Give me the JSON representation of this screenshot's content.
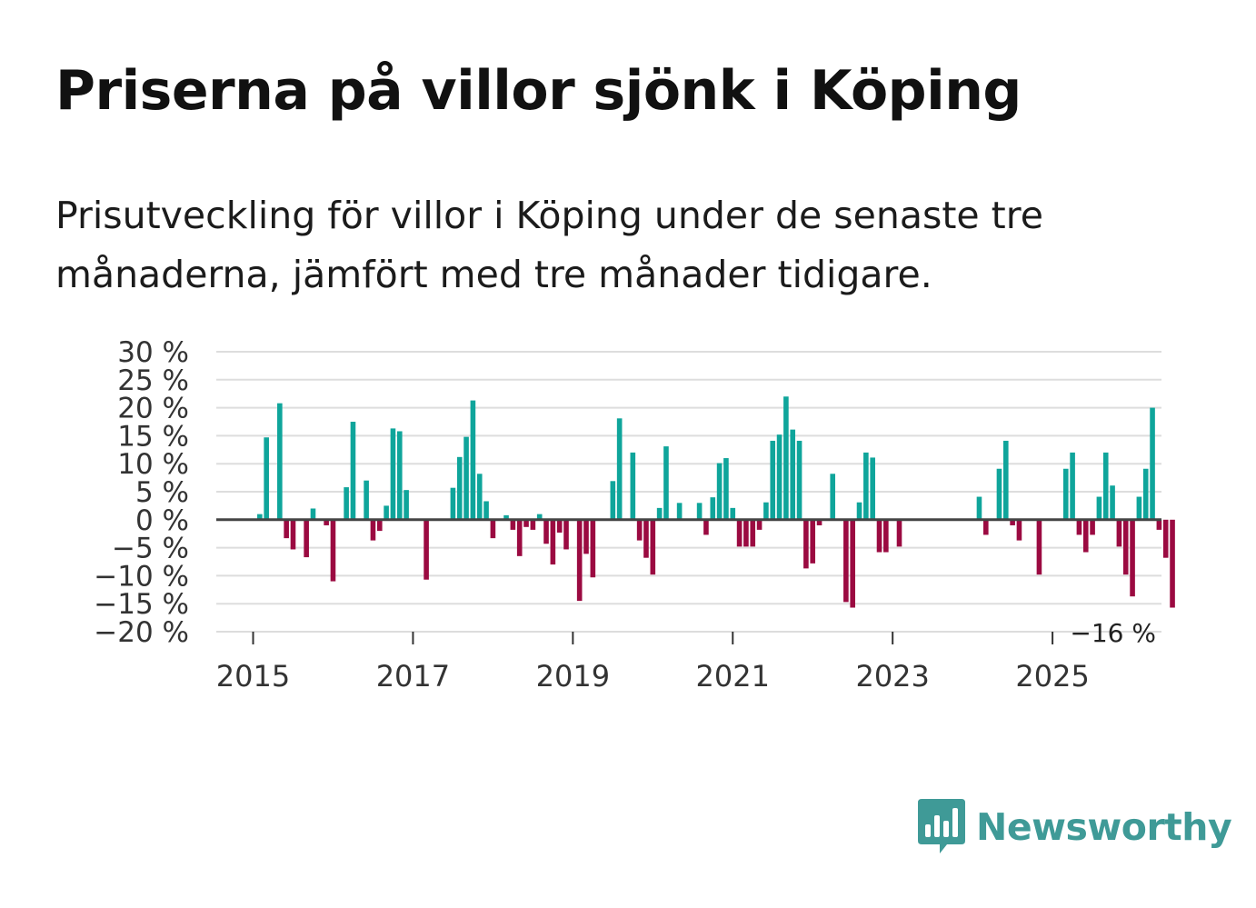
{
  "title": "Priserna på villor sjönk i Köping",
  "subtitle": "Prisutveckling för villor i Köping under de senaste tre månaderna, jämfört med tre månader tidigare.",
  "brand": {
    "name": "Newsworthy",
    "logo_icon": "bar-chart-speech-bubble-icon",
    "color": "#3f9a97"
  },
  "colors": {
    "positive": "#0fa59b",
    "negative": "#9b0a41",
    "gridline": "#dddddd",
    "zeroline": "#444444"
  },
  "chart_data": {
    "type": "bar",
    "title": "Priserna på villor sjönk i Köping",
    "xlabel": "",
    "ylabel": "",
    "ylim": [
      -20,
      30
    ],
    "yticks": [
      30,
      25,
      20,
      15,
      10,
      5,
      0,
      -5,
      -10,
      -15,
      -20
    ],
    "ytick_labels": [
      "30 %",
      "25 %",
      "20 %",
      "15 %",
      "10 %",
      "5 %",
      "0 %",
      "−5 %",
      "−10 %",
      "−15 %",
      "−20 %"
    ],
    "xtick_labels": [
      "2015",
      "2017",
      "2019",
      "2021",
      "2023",
      "2025"
    ],
    "xtick_years": [
      2015,
      2017,
      2019,
      2021,
      2023,
      2025
    ],
    "grid": true,
    "start": "2015-01",
    "end_label": "−16 %",
    "values": [
      null,
      1,
      14.7,
      null,
      20.8,
      -3.3,
      -5.3,
      null,
      -6.7,
      2,
      null,
      -1,
      -11,
      null,
      5.8,
      17.5,
      null,
      7,
      -3.7,
      -2,
      2.5,
      16.3,
      15.8,
      5.3,
      null,
      null,
      -10.7,
      null,
      null,
      null,
      5.7,
      11.2,
      14.8,
      21.3,
      8.2,
      3.3,
      -3.3,
      null,
      0.8,
      -1.8,
      -6.5,
      -1.3,
      -1.8,
      1,
      -4.3,
      -8,
      -2.3,
      -5.3,
      null,
      -14.5,
      -6.1,
      -10.3,
      null,
      null,
      6.9,
      18.1,
      null,
      12,
      -3.7,
      -6.8,
      -9.8,
      2.1,
      13.1,
      null,
      3,
      null,
      null,
      3,
      -2.7,
      4,
      10.1,
      11,
      2.1,
      -4.8,
      -4.8,
      -4.8,
      -1.8,
      3.1,
      14.1,
      15.2,
      22,
      16.1,
      14.1,
      -8.7,
      -7.8,
      -1,
      null,
      8.2,
      null,
      -14.7,
      -15.7,
      3.1,
      12,
      11.1,
      -5.8,
      -5.8,
      null,
      -4.8,
      null,
      null,
      null,
      null,
      null,
      null,
      null,
      null,
      null,
      null,
      null,
      4.1,
      -2.7,
      null,
      9.1,
      14.1,
      -1,
      -3.7,
      null,
      null,
      -9.8,
      null,
      null,
      null,
      9.1,
      12,
      -2.7,
      -5.8,
      -2.7,
      4.1,
      12,
      6.1,
      -4.8,
      -9.8,
      -13.7,
      4.1,
      9.1,
      20,
      -1.8,
      -6.8,
      -15.7
    ]
  }
}
